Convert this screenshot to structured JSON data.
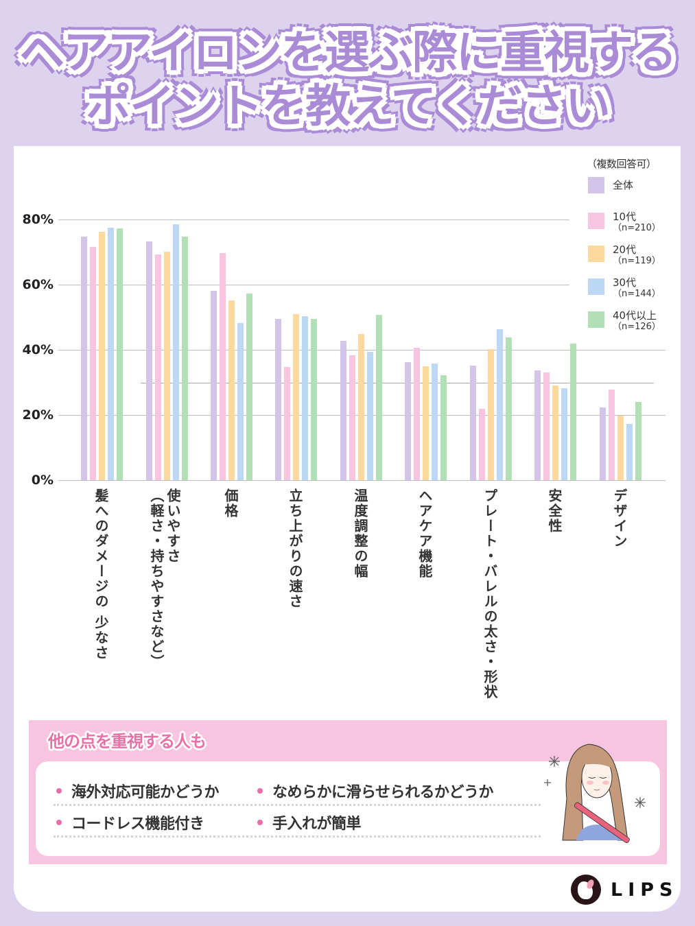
{
  "title": {
    "line1": "ヘアアイロンを選ぶ際に重視する",
    "line2": "ポイントを教えてください"
  },
  "legend": {
    "note": "（複数回答可）",
    "items": [
      {
        "label": "全体",
        "n": "",
        "color": "#d3c4ea"
      },
      {
        "label": "10代",
        "n": "（n=210）",
        "color": "#f7c5df"
      },
      {
        "label": "20代",
        "n": "（n=119）",
        "color": "#fdd9a0"
      },
      {
        "label": "30代",
        "n": "（n=144）",
        "color": "#bcd8f4"
      },
      {
        "label": "40代以上",
        "n": "（n=126）",
        "color": "#b2dfb6"
      }
    ]
  },
  "axis": {
    "yticks": [
      "80%",
      "60%",
      "40%",
      "20%",
      "0%"
    ]
  },
  "chart_data": {
    "type": "bar",
    "title": "ヘアアイロンを選ぶ際に重視するポイントを教えてください",
    "subtitle": "（複数回答可）",
    "xlabel": "",
    "ylabel": "",
    "ylim": [
      0,
      80
    ],
    "yticks": [
      0,
      20,
      40,
      60,
      80
    ],
    "grid": true,
    "legend_position": "top-right",
    "categories": [
      "髪へのダメージの少なさ",
      "使いやすさ（軽さ・持ちやすさなど）",
      "価格",
      "立ち上がりの速さ",
      "温度調整の幅",
      "ヘアケア機能",
      "プレート・バレルの太さ・形状",
      "安全性",
      "デザイン"
    ],
    "series": [
      {
        "name": "全体",
        "values": [
          74.7,
          73.3,
          58.1,
          49.5,
          42.7,
          36.2,
          35.2,
          33.7,
          22.3
        ]
      },
      {
        "name": "10代（n=210）",
        "values": [
          71.6,
          69.3,
          69.7,
          34.7,
          38.3,
          40.6,
          21.9,
          33.0,
          27.8
        ]
      },
      {
        "name": "20代（n=119）",
        "values": [
          76.2,
          70.1,
          55.2,
          51.0,
          44.8,
          35.0,
          40.2,
          29.0,
          19.8
        ]
      },
      {
        "name": "30代（n=144）",
        "values": [
          77.5,
          78.5,
          48.2,
          50.3,
          39.4,
          35.8,
          46.3,
          28.2,
          17.3
        ]
      },
      {
        "name": "40代以上（n=126）",
        "values": [
          77.3,
          74.7,
          57.3,
          49.5,
          50.7,
          32.2,
          43.8,
          41.9,
          24.0
        ]
      }
    ]
  },
  "xlabels": [
    {
      "line1": "髪へのダメージの 少なさ",
      "line2": ""
    },
    {
      "line1": "使いやすさ",
      "line2": "（軽さ・持ちやすさなど）"
    },
    {
      "line1": "価格",
      "line2": ""
    },
    {
      "line1": "立ち上がりの速さ",
      "line2": ""
    },
    {
      "line1": "温度調整の幅",
      "line2": ""
    },
    {
      "line1": "ヘアケア機能",
      "line2": ""
    },
    {
      "line1": "プレート・バレルの太さ・形状",
      "line2": ""
    },
    {
      "line1": "安全性",
      "line2": ""
    },
    {
      "line1": "デザイン",
      "line2": ""
    }
  ],
  "others": {
    "title": "他の点を重視する人も",
    "items": [
      "海外対応可能かどうか",
      "なめらかに滑らせられるかどうか",
      "コードレス機能付き",
      "手入れが簡単"
    ]
  },
  "brand": {
    "name": "LIPS"
  }
}
